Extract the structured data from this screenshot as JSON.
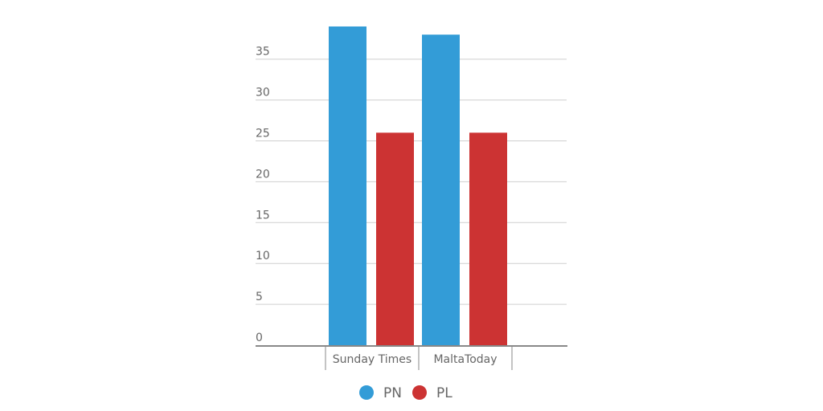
{
  "chart_data": {
    "type": "bar",
    "categories": [
      "Sunday Times",
      "MaltaToday"
    ],
    "series": [
      {
        "name": "PN",
        "values": [
          39,
          38
        ],
        "color": "#339cd7"
      },
      {
        "name": "PL",
        "values": [
          26,
          26
        ],
        "color": "#cc3333"
      }
    ],
    "yticks": [
      0,
      5,
      10,
      15,
      20,
      25,
      30,
      35
    ],
    "ylim": [
      0,
      40
    ],
    "grid": true,
    "legend_position": "bottom",
    "title": "",
    "xlabel": "",
    "ylabel": ""
  }
}
